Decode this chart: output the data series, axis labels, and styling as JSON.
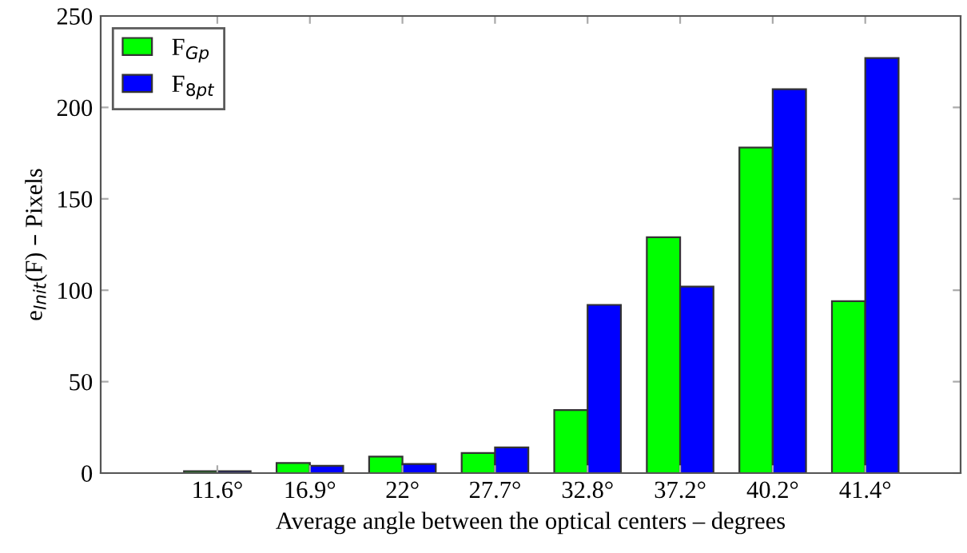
{
  "chart_data": {
    "type": "bar",
    "xlabel": "Average angle between the optical centers – degrees",
    "ylabel": "e$_{Init}$(F) – Pixels",
    "categories": [
      "11.6°",
      "16.9°",
      "22°",
      "27.7°",
      "32.8°",
      "37.2°",
      "40.2°",
      "41.4°"
    ],
    "series": [
      {
        "name": "F$_{Gp}$",
        "color": "#00ff00",
        "values": [
          1,
          5.5,
          9,
          11,
          34.5,
          129,
          178,
          94
        ]
      },
      {
        "name": "F$_{8pt}$",
        "color": "#0000ff",
        "values": [
          1,
          4,
          5,
          14,
          92,
          102,
          210,
          227
        ]
      }
    ],
    "ylim": [
      0,
      250
    ],
    "yticks": [
      0,
      50,
      100,
      150,
      200,
      250
    ],
    "grid": false,
    "legend": "top left"
  }
}
